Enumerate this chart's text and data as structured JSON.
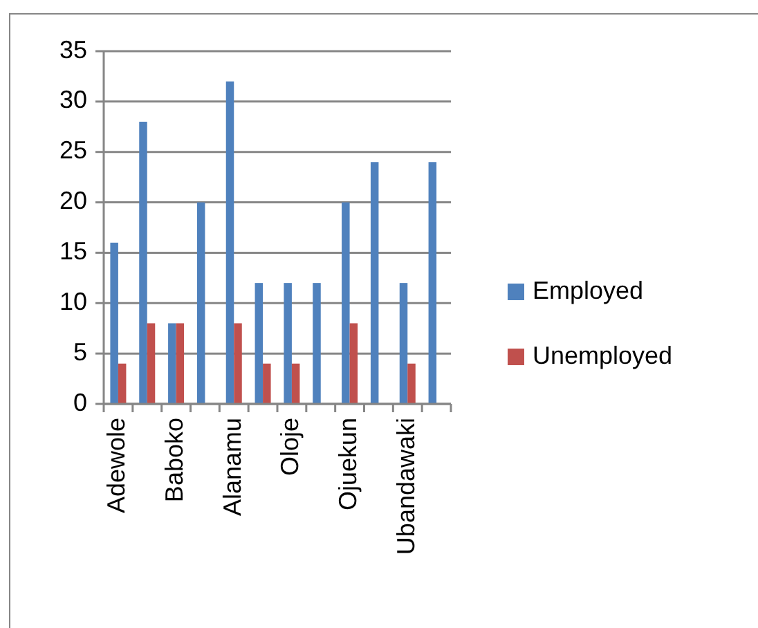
{
  "chart_data": {
    "type": "bar",
    "categories": [
      "Adewole",
      null,
      "Baboko",
      null,
      "Alanamu",
      null,
      "Oloje",
      null,
      "Ojuekun",
      null,
      "Ubandawaki",
      null
    ],
    "series": [
      {
        "name": "Employed",
        "color": "#4f81bd",
        "values": [
          16,
          28,
          8,
          20,
          32,
          12,
          12,
          12,
          20,
          24,
          12,
          24
        ]
      },
      {
        "name": "Unemployed",
        "color": "#c0504d",
        "values": [
          4,
          8,
          8,
          null,
          8,
          4,
          4,
          null,
          8,
          null,
          4,
          null
        ]
      }
    ],
    "ylim": [
      0,
      35
    ],
    "yticks": [
      0,
      5,
      10,
      15,
      20,
      25,
      30,
      35
    ],
    "grid": "y",
    "legend": "right"
  }
}
